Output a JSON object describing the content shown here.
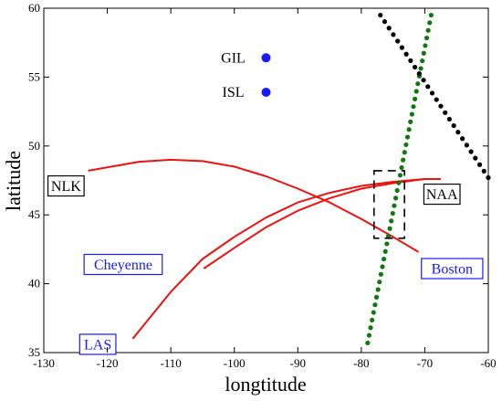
{
  "chart_data": {
    "type": "line",
    "title": "",
    "xlabel": "longtitude",
    "ylabel": "latitude",
    "xlim": [
      -130,
      -60
    ],
    "ylim": [
      35,
      60
    ],
    "xticks": [
      -130,
      -120,
      -110,
      -100,
      -90,
      -80,
      -70,
      -60
    ],
    "yticks": [
      35,
      40,
      45,
      50,
      55,
      60
    ],
    "grid": false,
    "series": [
      {
        "style": "red-solid",
        "color": "#ee1111",
        "x": [
          -123,
          -115,
          -110,
          -105,
          -100,
          -95,
          -90,
          -85,
          -80,
          -75,
          -71
        ],
        "y": [
          48.2,
          48.85,
          49.0,
          48.9,
          48.5,
          47.8,
          46.9,
          45.9,
          44.7,
          43.4,
          42.3
        ]
      },
      {
        "style": "red-solid",
        "color": "#ee1111",
        "x": [
          -116,
          -110,
          -105,
          -100,
          -95,
          -90,
          -85,
          -80,
          -75,
          -70,
          -67.5
        ],
        "y": [
          36.0,
          39.4,
          41.8,
          43.4,
          44.8,
          45.9,
          46.6,
          47.1,
          47.4,
          47.6,
          47.6
        ]
      },
      {
        "style": "red-solid",
        "color": "#ee1111",
        "x": [
          -104.8,
          -100,
          -95,
          -90,
          -85,
          -80,
          -75,
          -70,
          -67.5
        ],
        "y": [
          41.1,
          42.6,
          44.1,
          45.3,
          46.2,
          46.9,
          47.3,
          47.6,
          47.6
        ]
      },
      {
        "style": "green-dotted",
        "color": "#117711",
        "x": [
          -79,
          -69
        ],
        "y": [
          35.7,
          59.5
        ]
      },
      {
        "style": "black-dotted",
        "color": "#000000",
        "x": [
          -77,
          -60
        ],
        "y": [
          59.5,
          47.7
        ]
      }
    ],
    "points": [
      {
        "label": "GIL",
        "x": -95,
        "y": 56.4,
        "color": "#1a1aff"
      },
      {
        "label": "ISL",
        "x": -95,
        "y": 53.9,
        "color": "#1a1aff"
      }
    ],
    "labels": [
      {
        "text": "NLK",
        "x": -126.5,
        "y": 47.1,
        "color": "#000000"
      },
      {
        "text": "NAA",
        "x": -67.3,
        "y": 46.5,
        "color": "#000000"
      },
      {
        "text": "Cheyenne",
        "x": -117.5,
        "y": 41.4,
        "color": "#1a1aff"
      },
      {
        "text": "Boston",
        "x": -65.7,
        "y": 41.1,
        "color": "#1a1aff"
      },
      {
        "text": "LAS",
        "x": -121.5,
        "y": 35.6,
        "color": "#1a1aff"
      }
    ],
    "region": {
      "x": [
        -78,
        -73.2
      ],
      "y": [
        43.3,
        48.2
      ]
    }
  }
}
